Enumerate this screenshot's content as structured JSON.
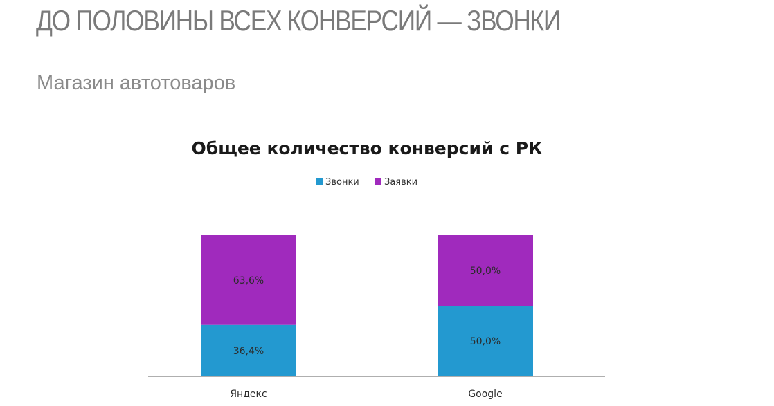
{
  "header": {
    "title": "ДО ПОЛОВИНЫ ВСЕХ КОНВЕРСИЙ — ЗВОНКИ",
    "subtitle": "Магазин автотоваров"
  },
  "colors": {
    "calls": "#2399d0",
    "requests": "#a02abd",
    "axis": "#7f7f7f"
  },
  "chart_data": {
    "type": "bar",
    "stacked": true,
    "percent_stacked": true,
    "title": "Общее количество конверсий с РК",
    "legend_position": "top",
    "categories": [
      "Яндекс",
      "Google"
    ],
    "series": [
      {
        "name": "Звонки",
        "values": [
          36.4,
          50.0
        ],
        "labels": [
          "36,4%",
          "50,0%"
        ]
      },
      {
        "name": "Заявки",
        "values": [
          63.6,
          50.0
        ],
        "labels": [
          "63,6%",
          "50,0%"
        ]
      }
    ],
    "ylim": [
      0,
      100
    ],
    "grid": false
  }
}
